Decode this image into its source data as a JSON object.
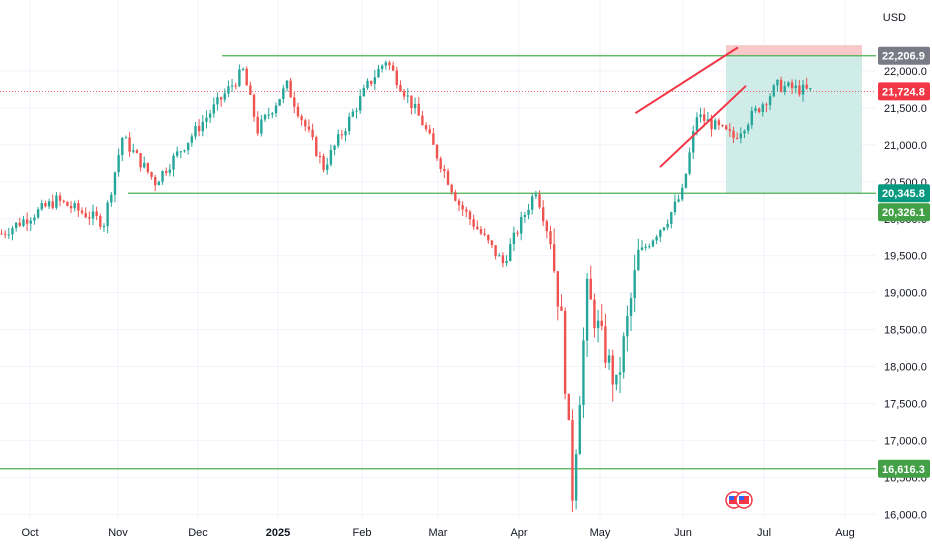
{
  "currency": "USD",
  "colors": {
    "up": "#26a69a",
    "down": "#ef5350",
    "level": "#4caf50",
    "pattern": "#f23645",
    "grid": "#f0f3fa",
    "axis_text": "#131722",
    "stop_zone": "#f7c9c8",
    "target_zone": "#cfece8"
  },
  "chart_data": {
    "type": "candlestick",
    "x_ticks": [
      "Oct",
      "Nov",
      "Dec",
      "2025",
      "Feb",
      "Mar",
      "Apr",
      "May",
      "Jun",
      "Jul",
      "Aug"
    ],
    "y_ticks": [
      "16,000.0",
      "16,500.0",
      "17,000.0",
      "17,500.0",
      "18,000.0",
      "18,500.0",
      "19,000.0",
      "19,500.0",
      "20,000.0",
      "20,500.0",
      "21,000.0",
      "21,500.0",
      "22,000.0"
    ],
    "y_tick_values": [
      16000,
      16500,
      17000,
      17500,
      18000,
      18500,
      19000,
      19500,
      20000,
      20500,
      21000,
      21500,
      22000
    ],
    "ylim": [
      15950,
      22650
    ],
    "trend": [
      {
        "t": 0,
        "v": 19800
      },
      {
        "t": 15,
        "v": 20250
      },
      {
        "t": 28,
        "v": 19950
      },
      {
        "t": 33,
        "v": 21100
      },
      {
        "t": 42,
        "v": 20500
      },
      {
        "t": 58,
        "v": 21500
      },
      {
        "t": 66,
        "v": 22000
      },
      {
        "t": 70,
        "v": 21200
      },
      {
        "t": 78,
        "v": 21800
      },
      {
        "t": 88,
        "v": 20700
      },
      {
        "t": 100,
        "v": 21800
      },
      {
        "t": 105,
        "v": 22150
      },
      {
        "t": 115,
        "v": 21300
      },
      {
        "t": 125,
        "v": 20200
      },
      {
        "t": 137,
        "v": 19400
      },
      {
        "t": 146,
        "v": 20400
      },
      {
        "t": 150,
        "v": 19700
      },
      {
        "t": 153,
        "v": 18600
      },
      {
        "t": 156,
        "v": 16300
      },
      {
        "t": 160,
        "v": 19000
      },
      {
        "t": 168,
        "v": 17700
      },
      {
        "t": 174,
        "v": 19500
      },
      {
        "t": 182,
        "v": 20000
      },
      {
        "t": 186,
        "v": 20350
      },
      {
        "t": 190,
        "v": 21400
      },
      {
        "t": 200,
        "v": 21100
      },
      {
        "t": 212,
        "v": 21800
      },
      {
        "t": 221,
        "v": 21724.8
      }
    ],
    "levels": [
      {
        "name": "resistance",
        "value": 22206.9,
        "label": "22,206.9",
        "tag_color": "#787b86"
      },
      {
        "name": "support",
        "value": 20345.8,
        "label": "20,345.8",
        "tag_color": "#089981"
      },
      {
        "name": "low",
        "value": 16616.3,
        "label": "16,616.3",
        "tag_color": "#43a047"
      }
    ],
    "current_price": {
      "value": 21724.8,
      "label": "21,724.8",
      "tag_color": "#f23645"
    },
    "target_price": {
      "value": 20326.1,
      "label": "20,326.1",
      "tag_color": "#43a047"
    },
    "position": {
      "entry": 22206.9,
      "stop": 22350,
      "target": 20345.8
    },
    "rising_wedge": {
      "upper": [
        {
          "t": 190,
          "v": 21430
        },
        {
          "t": 226,
          "v": 22320
        }
      ],
      "lower": [
        {
          "t": 200,
          "v": 20700
        },
        {
          "t": 228,
          "v": 21800
        }
      ]
    },
    "grid": true,
    "legend": "none"
  }
}
